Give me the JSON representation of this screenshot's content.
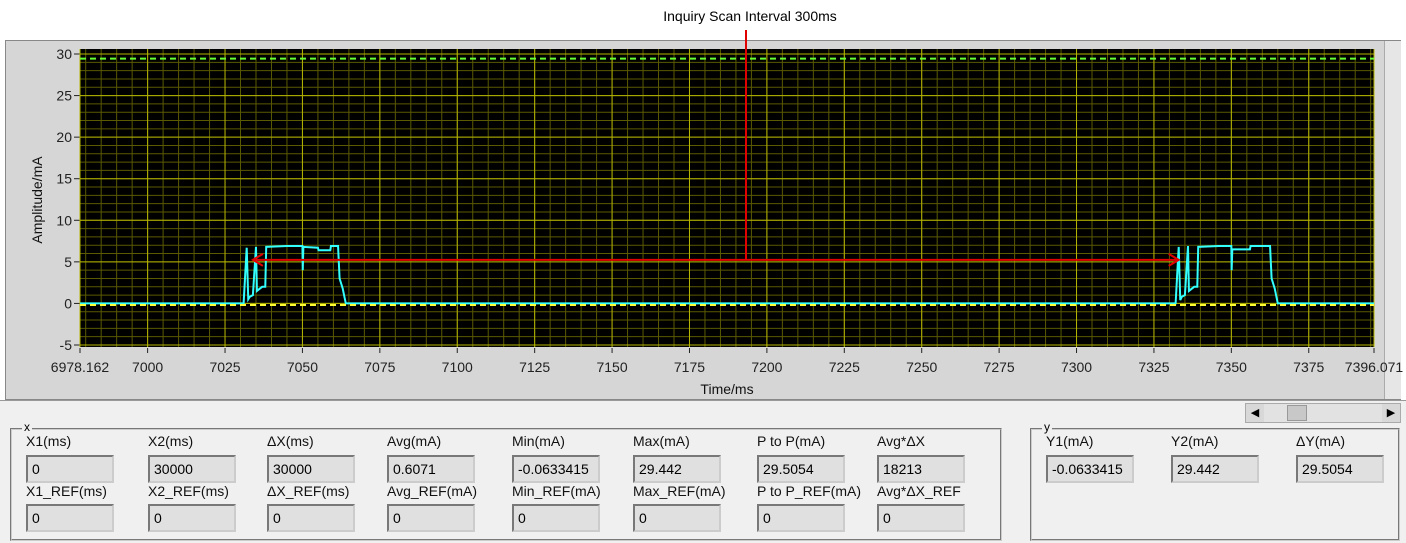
{
  "annotation": "Inquiry Scan Interval 300ms",
  "chart_data": {
    "type": "line",
    "xlabel": "Time/ms",
    "ylabel": "Amplitude/mA",
    "xlim": [
      6978.162,
      7396.071
    ],
    "ylim": [
      -5,
      30
    ],
    "xticks": [
      "6978.162",
      "7000",
      "7025",
      "7050",
      "7075",
      "7100",
      "7125",
      "7150",
      "7175",
      "7200",
      "7225",
      "7250",
      "7275",
      "7300",
      "7325",
      "7350",
      "7375",
      "7396.071"
    ],
    "yticks": [
      30,
      25,
      20,
      15,
      10,
      5,
      0,
      -5
    ],
    "grid": true,
    "colors": {
      "plot_bg": "#000000",
      "grid": "#b5b500",
      "trace": "#33ffff",
      "cursor_max": "#66ff33",
      "cursor_min": "#ffff33",
      "annotation": "#e00000"
    },
    "cursors": {
      "max": 29.442,
      "min": -0.0633415
    },
    "interval_arrow": {
      "from": 7034,
      "to": 7333,
      "y": 5
    },
    "series": [
      {
        "x": [
          6978.162,
          7031,
          7032,
          7032.5,
          7033,
          7034,
          7035,
          7035.3,
          7037,
          7038,
          7038.3,
          7045,
          7050,
          7050.1,
          7050.3,
          7055,
          7055.2,
          7059,
          7059.2,
          7061.5,
          7062,
          7063,
          7064,
          7332,
          7333,
          7333.5,
          7334,
          7335,
          7336,
          7336.3,
          7338,
          7339,
          7339.3,
          7346,
          7350,
          7350.1,
          7350.3,
          7356,
          7356.2,
          7360,
          7360.2,
          7362.5,
          7363,
          7364,
          7365,
          7396.071
        ],
        "y": [
          0,
          0,
          6.7,
          0.5,
          0.8,
          1,
          6.8,
          1.5,
          2,
          2,
          6.8,
          6.9,
          6.9,
          4,
          6.8,
          6.7,
          6.4,
          6.4,
          6.9,
          6.9,
          3,
          1.8,
          0,
          0,
          6.8,
          0.4,
          0.8,
          1,
          6.9,
          1.5,
          2,
          2,
          6.8,
          6.9,
          6.9,
          4,
          6.5,
          6.5,
          6.9,
          6.9,
          6.9,
          6.9,
          3,
          1.8,
          0,
          0
        ]
      }
    ]
  },
  "cursor_panel": {
    "group_label": "x",
    "row1": [
      {
        "label": "X1(ms)",
        "value": "0"
      },
      {
        "label": "X2(ms)",
        "value": "30000"
      },
      {
        "label": "ΔX(ms)",
        "value": "30000"
      },
      {
        "label": "Avg(mA)",
        "value": "0.6071"
      },
      {
        "label": "Min(mA)",
        "value": "-0.0633415"
      },
      {
        "label": "Max(mA)",
        "value": "29.442"
      },
      {
        "label": "P to P(mA)",
        "value": "29.5054"
      },
      {
        "label": "Avg*ΔX",
        "value": "18213"
      }
    ],
    "row2": [
      {
        "label": "X1_REF(ms)",
        "value": "0"
      },
      {
        "label": "X2_REF(ms)",
        "value": "0"
      },
      {
        "label": "ΔX_REF(ms)",
        "value": "0"
      },
      {
        "label": "Avg_REF(mA)",
        "value": "0"
      },
      {
        "label": "Min_REF(mA)",
        "value": "0"
      },
      {
        "label": "Max_REF(mA)",
        "value": "0"
      },
      {
        "label": "P to P_REF(mA)",
        "value": "0"
      },
      {
        "label": "Avg*ΔX_REF",
        "value": "0"
      }
    ]
  },
  "y_panel": {
    "group_label": "y",
    "items": [
      {
        "label": "Y1(mA)",
        "value": "-0.0633415"
      },
      {
        "label": "Y2(mA)",
        "value": "29.442"
      },
      {
        "label": "ΔY(mA)",
        "value": "29.5054"
      }
    ]
  }
}
